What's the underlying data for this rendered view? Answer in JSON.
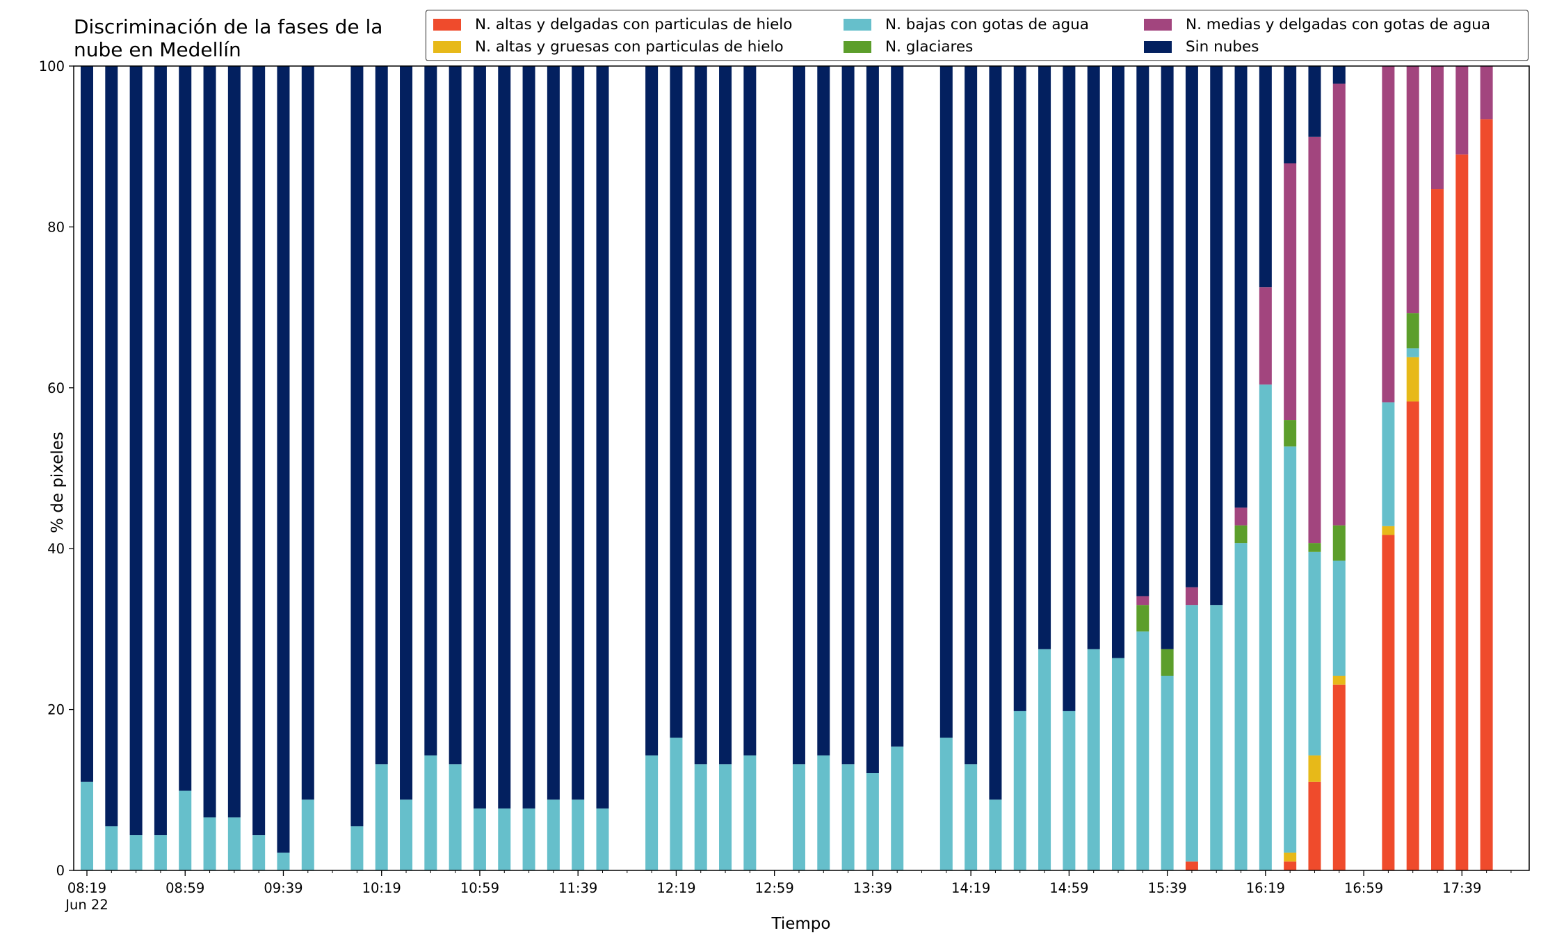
{
  "chart_data": {
    "type": "bar",
    "stacked": true,
    "title": "Discriminación de la fases de la nube en Medellín",
    "xlabel": "Tiempo",
    "ylabel": "% de pixeles",
    "ylim": [
      0,
      100
    ],
    "yticks": [
      "0",
      "20",
      "40",
      "60",
      "80",
      "100"
    ],
    "xticks": [
      {
        "t": "08:19",
        "sub": "Jun 22"
      },
      {
        "t": "08:59",
        "sub": ""
      },
      {
        "t": "09:39",
        "sub": ""
      },
      {
        "t": "10:19",
        "sub": ""
      },
      {
        "t": "10:59",
        "sub": ""
      },
      {
        "t": "11:39",
        "sub": ""
      },
      {
        "t": "12:19",
        "sub": ""
      },
      {
        "t": "12:59",
        "sub": ""
      },
      {
        "t": "13:39",
        "sub": ""
      },
      {
        "t": "14:19",
        "sub": ""
      },
      {
        "t": "14:59",
        "sub": ""
      },
      {
        "t": "15:39",
        "sub": ""
      },
      {
        "t": "16:19",
        "sub": ""
      },
      {
        "t": "16:59",
        "sub": ""
      },
      {
        "t": "17:39",
        "sub": ""
      }
    ],
    "x_range": [
      "08:19",
      "18:01"
    ],
    "legend_position": "top-right",
    "grid": false,
    "x": [
      "08:19",
      "08:29",
      "08:39",
      "08:49",
      "08:59",
      "09:09",
      "09:19",
      "09:29",
      "09:39",
      "09:49",
      "10:09",
      "10:19",
      "10:29",
      "10:39",
      "10:49",
      "10:59",
      "11:09",
      "11:19",
      "11:29",
      "11:39",
      "11:49",
      "12:09",
      "12:19",
      "12:29",
      "12:39",
      "12:49",
      "13:09",
      "13:19",
      "13:29",
      "13:39",
      "13:49",
      "14:09",
      "14:19",
      "14:29",
      "14:39",
      "14:49",
      "14:59",
      "15:09",
      "15:19",
      "15:29",
      "15:39",
      "15:49",
      "15:59",
      "16:09",
      "16:19",
      "16:29",
      "16:39",
      "16:49",
      "17:09",
      "17:19",
      "17:29",
      "17:39",
      "17:49"
    ],
    "series": [
      {
        "name": "N. altas y delgadas con particulas de hielo",
        "color": "#ef4b2c",
        "values": [
          0,
          0,
          0,
          0,
          0,
          0,
          0,
          0,
          0,
          0,
          0,
          0,
          0,
          0,
          0,
          0,
          0,
          0,
          0,
          0,
          0,
          0,
          0,
          0,
          0,
          0,
          0,
          0,
          0,
          0,
          0,
          0,
          0,
          0,
          0,
          0,
          0,
          0,
          0,
          0,
          0,
          1.1,
          0,
          0,
          0,
          1.1,
          11.0,
          23.1,
          41.7,
          58.3,
          84.7,
          89.0,
          93.4
        ]
      },
      {
        "name": "N. altas y gruesas con particulas de hielo",
        "color": "#e7b919",
        "values": [
          0,
          0,
          0,
          0,
          0,
          0,
          0,
          0,
          0,
          0,
          0,
          0,
          0,
          0,
          0,
          0,
          0,
          0,
          0,
          0,
          0,
          0,
          0,
          0,
          0,
          0,
          0,
          0,
          0,
          0,
          0,
          0,
          0,
          0,
          0,
          0,
          0,
          0,
          0,
          0,
          0,
          0,
          0,
          0,
          0,
          1.1,
          3.3,
          1.1,
          1.1,
          5.5,
          0,
          0,
          0
        ]
      },
      {
        "name": "N. bajas con gotas de agua",
        "color": "#66bfcb",
        "values": [
          11.0,
          5.5,
          4.4,
          4.4,
          9.9,
          6.6,
          6.6,
          4.4,
          2.2,
          8.8,
          5.5,
          13.2,
          8.8,
          14.3,
          13.2,
          7.7,
          7.7,
          7.7,
          8.8,
          8.8,
          7.7,
          14.3,
          16.5,
          13.2,
          13.2,
          14.3,
          13.2,
          14.3,
          13.2,
          12.1,
          15.4,
          16.5,
          13.2,
          8.8,
          19.8,
          27.5,
          19.8,
          27.5,
          26.4,
          29.7,
          24.2,
          31.9,
          33.0,
          40.7,
          60.4,
          50.5,
          25.3,
          14.3,
          15.4,
          1.1,
          0,
          0,
          0
        ]
      },
      {
        "name": "N. glaciares",
        "color": "#5c9e2b",
        "values": [
          0,
          0,
          0,
          0,
          0,
          0,
          0,
          0,
          0,
          0,
          0,
          0,
          0,
          0,
          0,
          0,
          0,
          0,
          0,
          0,
          0,
          0,
          0,
          0,
          0,
          0,
          0,
          0,
          0,
          0,
          0,
          0,
          0,
          0,
          0,
          0,
          0,
          0,
          0,
          3.3,
          3.3,
          0,
          0,
          2.2,
          0,
          3.3,
          1.1,
          4.4,
          0,
          4.4,
          0,
          0,
          0
        ]
      },
      {
        "name": "N. medias y delgadas con gotas de agua",
        "color": "#a2457e",
        "values": [
          0,
          0,
          0,
          0,
          0,
          0,
          0,
          0,
          0,
          0,
          0,
          0,
          0,
          0,
          0,
          0,
          0,
          0,
          0,
          0,
          0,
          0,
          0,
          0,
          0,
          0,
          0,
          0,
          0,
          0,
          0,
          0,
          0,
          0,
          0,
          0,
          0,
          0,
          0,
          1.1,
          0,
          2.2,
          0,
          2.2,
          12.1,
          31.9,
          50.5,
          54.9,
          41.8,
          30.7,
          15.3,
          11.0,
          6.6
        ]
      },
      {
        "name": "Sin nubes",
        "color": "#03205f",
        "values": [
          89.0,
          94.5,
          95.6,
          95.6,
          90.1,
          93.4,
          93.4,
          95.6,
          97.8,
          91.2,
          94.5,
          86.8,
          91.2,
          85.7,
          86.8,
          92.3,
          92.3,
          92.3,
          91.2,
          91.2,
          92.3,
          85.7,
          83.5,
          86.8,
          86.8,
          85.7,
          86.8,
          85.7,
          86.8,
          87.9,
          84.6,
          83.5,
          86.8,
          91.2,
          80.2,
          72.5,
          80.2,
          72.5,
          73.6,
          65.9,
          72.5,
          64.8,
          67.0,
          54.9,
          27.5,
          12.1,
          8.8,
          2.2,
          0,
          0,
          0,
          0,
          0
        ]
      }
    ]
  }
}
